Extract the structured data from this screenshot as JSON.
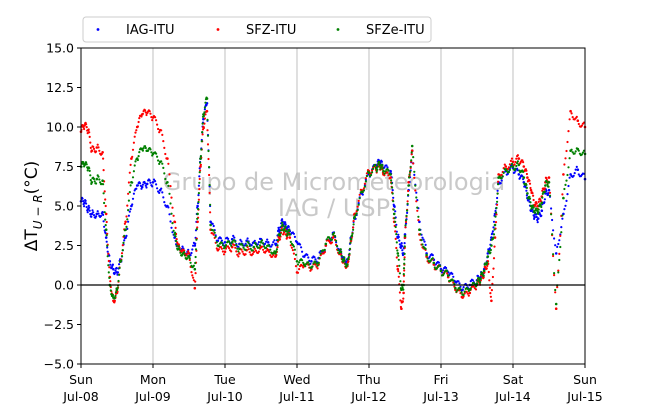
{
  "chart_data": {
    "type": "scatter",
    "ylabel": "ΔT_{U−R}(°C)",
    "ylabel_main": "ΔT",
    "ylabel_sub": "U − R",
    "ylabel_unit": "(°C)",
    "ylim": [
      -5.0,
      15.0
    ],
    "yticks": [
      "−5.0",
      "−2.5",
      "0.0",
      "2.5",
      "5.0",
      "7.5",
      "10.0",
      "12.5",
      "15.0"
    ],
    "ytick_values": [
      -5.0,
      -2.5,
      0.0,
      2.5,
      5.0,
      7.5,
      10.0,
      12.5,
      15.0
    ],
    "xlim_days": [
      0,
      7
    ],
    "xticks": [
      {
        "day": "Sun",
        "date": "Jul-08"
      },
      {
        "day": "Mon",
        "date": "Jul-09"
      },
      {
        "day": "Tue",
        "date": "Jul-10"
      },
      {
        "day": "Wed",
        "date": "Jul-11"
      },
      {
        "day": "Thu",
        "date": "Jul-12"
      },
      {
        "day": "Fri",
        "date": "Jul-13"
      },
      {
        "day": "Sat",
        "date": "Jul-14"
      },
      {
        "day": "Sun",
        "date": "Jul-15"
      }
    ],
    "grid": "vertical",
    "zero_line": true,
    "legend_position": "top",
    "watermark": [
      "Grupo de Micrometeorologia",
      "IAG / USP"
    ],
    "series": [
      {
        "name": "IAG-ITU",
        "color": "#0000ff",
        "x": [
          0.0,
          0.05,
          0.1,
          0.15,
          0.22,
          0.3,
          0.35,
          0.4,
          0.45,
          0.5,
          0.55,
          0.62,
          0.7,
          0.78,
          0.85,
          0.92,
          1.0,
          1.1,
          1.2,
          1.3,
          1.35,
          1.42,
          1.5,
          1.58,
          1.62,
          1.66,
          1.7,
          1.75,
          1.8,
          1.9,
          2.0,
          2.1,
          2.2,
          2.3,
          2.4,
          2.5,
          2.6,
          2.7,
          2.75,
          2.8,
          2.85,
          2.9,
          3.0,
          3.1,
          3.2,
          3.3,
          3.4,
          3.5,
          3.6,
          3.65,
          3.7,
          3.75,
          3.8,
          3.9,
          4.0,
          4.1,
          4.15,
          4.2,
          4.3,
          4.35,
          4.4,
          4.45,
          4.48,
          4.5,
          4.55,
          4.6,
          4.7,
          4.8,
          4.9,
          5.0,
          5.1,
          5.2,
          5.3,
          5.4,
          5.5,
          5.55,
          5.6,
          5.65,
          5.7,
          5.75,
          5.8,
          5.9,
          6.0,
          6.08,
          6.15,
          6.2,
          6.25,
          6.3,
          6.35,
          6.4,
          6.45,
          6.5,
          6.6,
          6.7,
          6.8,
          6.9,
          7.0
        ],
        "y": [
          5.3,
          5.2,
          4.8,
          4.5,
          4.5,
          4.6,
          3.0,
          1.5,
          1.0,
          0.8,
          1.5,
          3.0,
          5.0,
          6.3,
          6.2,
          6.4,
          6.5,
          6.0,
          5.0,
          3.0,
          2.5,
          2.3,
          2.0,
          2.5,
          5.0,
          8.0,
          10.5,
          11.5,
          4.0,
          2.8,
          2.7,
          2.9,
          2.6,
          2.8,
          2.7,
          2.9,
          2.7,
          2.6,
          3.5,
          4.0,
          3.6,
          3.4,
          2.7,
          1.8,
          1.5,
          1.7,
          2.5,
          3.3,
          2.2,
          1.7,
          1.5,
          3.0,
          4.2,
          5.8,
          7.0,
          7.5,
          7.8,
          7.4,
          7.2,
          5.0,
          3.0,
          2.5,
          2.0,
          3.2,
          6.0,
          8.5,
          4.0,
          2.0,
          1.6,
          1.0,
          0.8,
          0.2,
          -0.3,
          0.0,
          0.3,
          0.5,
          1.0,
          2.0,
          3.0,
          4.5,
          6.5,
          7.2,
          7.4,
          7.0,
          6.5,
          5.5,
          4.7,
          4.3,
          4.2,
          4.7,
          5.8,
          6.0,
          2.0,
          4.5,
          7.0,
          7.3,
          6.7
        ]
      },
      {
        "name": "SFZ-ITU",
        "color": "#ff0000",
        "x": [
          0.0,
          0.05,
          0.1,
          0.15,
          0.22,
          0.3,
          0.35,
          0.4,
          0.45,
          0.5,
          0.55,
          0.62,
          0.7,
          0.78,
          0.85,
          0.92,
          1.0,
          1.1,
          1.2,
          1.3,
          1.35,
          1.42,
          1.5,
          1.58,
          1.62,
          1.66,
          1.7,
          1.75,
          1.8,
          1.9,
          2.0,
          2.1,
          2.2,
          2.3,
          2.4,
          2.5,
          2.6,
          2.7,
          2.75,
          2.8,
          2.85,
          2.9,
          3.0,
          3.1,
          3.2,
          3.3,
          3.4,
          3.5,
          3.6,
          3.65,
          3.7,
          3.75,
          3.8,
          3.9,
          4.0,
          4.1,
          4.15,
          4.2,
          4.3,
          4.35,
          4.4,
          4.45,
          4.48,
          4.5,
          4.55,
          4.6,
          4.7,
          4.8,
          4.9,
          5.0,
          5.1,
          5.2,
          5.3,
          5.4,
          5.5,
          5.55,
          5.6,
          5.65,
          5.7,
          5.75,
          5.8,
          5.9,
          6.0,
          6.08,
          6.15,
          6.2,
          6.25,
          6.3,
          6.35,
          6.4,
          6.45,
          6.5,
          6.6,
          6.7,
          6.8,
          6.9,
          7.0
        ],
        "y": [
          9.7,
          10.1,
          9.8,
          8.5,
          8.7,
          8.4,
          4.5,
          0.5,
          -1.0,
          -0.5,
          1.5,
          4.0,
          8.0,
          10.0,
          10.8,
          10.9,
          10.6,
          9.8,
          8.0,
          4.0,
          2.5,
          2.2,
          2.0,
          -0.2,
          4.0,
          7.5,
          10.0,
          11.0,
          3.5,
          2.2,
          2.1,
          2.4,
          2.0,
          2.2,
          2.1,
          2.4,
          2.2,
          1.8,
          3.0,
          3.5,
          3.2,
          3.0,
          0.8,
          1.2,
          1.0,
          1.3,
          2.5,
          3.0,
          2.0,
          1.5,
          1.2,
          2.8,
          4.5,
          6.0,
          7.2,
          7.3,
          7.5,
          7.0,
          6.8,
          4.0,
          1.0,
          -1.5,
          -0.5,
          3.0,
          6.5,
          8.5,
          3.2,
          1.8,
          1.3,
          0.9,
          0.5,
          -0.3,
          -0.8,
          -0.5,
          0.0,
          0.3,
          0.8,
          1.5,
          -1.0,
          3.0,
          7.0,
          7.5,
          7.8,
          8.0,
          7.5,
          6.8,
          6.0,
          5.0,
          5.0,
          5.6,
          6.5,
          6.8,
          -1.5,
          7.0,
          11.0,
          10.4,
          10.0
        ]
      },
      {
        "name": "SFZe-ITU",
        "color": "#008000",
        "x": [
          0.0,
          0.05,
          0.1,
          0.15,
          0.22,
          0.3,
          0.35,
          0.4,
          0.45,
          0.5,
          0.55,
          0.62,
          0.7,
          0.78,
          0.85,
          0.92,
          1.0,
          1.1,
          1.2,
          1.3,
          1.35,
          1.42,
          1.5,
          1.58,
          1.62,
          1.66,
          1.7,
          1.75,
          1.8,
          1.9,
          2.0,
          2.1,
          2.2,
          2.3,
          2.4,
          2.5,
          2.6,
          2.7,
          2.75,
          2.8,
          2.85,
          2.9,
          3.0,
          3.1,
          3.2,
          3.3,
          3.4,
          3.5,
          3.6,
          3.65,
          3.7,
          3.75,
          3.8,
          3.9,
          4.0,
          4.1,
          4.15,
          4.2,
          4.3,
          4.35,
          4.4,
          4.45,
          4.48,
          4.5,
          4.55,
          4.6,
          4.7,
          4.8,
          4.9,
          5.0,
          5.1,
          5.2,
          5.3,
          5.4,
          5.5,
          5.55,
          5.6,
          5.65,
          5.7,
          5.75,
          5.8,
          5.9,
          6.0,
          6.08,
          6.15,
          6.2,
          6.25,
          6.3,
          6.35,
          6.4,
          6.45,
          6.5,
          6.6,
          6.7,
          6.8,
          6.9,
          7.0
        ],
        "y": [
          7.5,
          7.6,
          7.4,
          6.5,
          6.7,
          6.6,
          3.5,
          0.0,
          -0.8,
          -0.3,
          1.5,
          3.5,
          6.5,
          8.0,
          8.6,
          8.5,
          8.3,
          7.8,
          6.5,
          3.2,
          2.3,
          2.0,
          1.8,
          1.0,
          4.5,
          8.0,
          10.8,
          11.8,
          3.8,
          2.5,
          2.4,
          2.7,
          2.3,
          2.5,
          2.4,
          2.7,
          2.5,
          2.0,
          3.2,
          3.8,
          3.4,
          3.2,
          1.5,
          1.3,
          1.1,
          1.4,
          2.6,
          3.2,
          2.1,
          1.6,
          1.3,
          2.9,
          4.3,
          5.9,
          7.1,
          7.4,
          7.6,
          7.2,
          7.0,
          4.5,
          2.0,
          -0.3,
          0.0,
          3.1,
          6.3,
          8.8,
          3.5,
          1.9,
          1.4,
          0.9,
          0.6,
          -0.2,
          -0.6,
          -0.3,
          0.1,
          0.4,
          0.9,
          1.8,
          2.5,
          3.8,
          6.8,
          7.3,
          7.5,
          7.6,
          6.8,
          5.8,
          5.0,
          4.6,
          4.6,
          5.2,
          6.3,
          6.5,
          -1.2,
          5.5,
          8.5,
          8.6,
          8.3
        ]
      }
    ]
  }
}
